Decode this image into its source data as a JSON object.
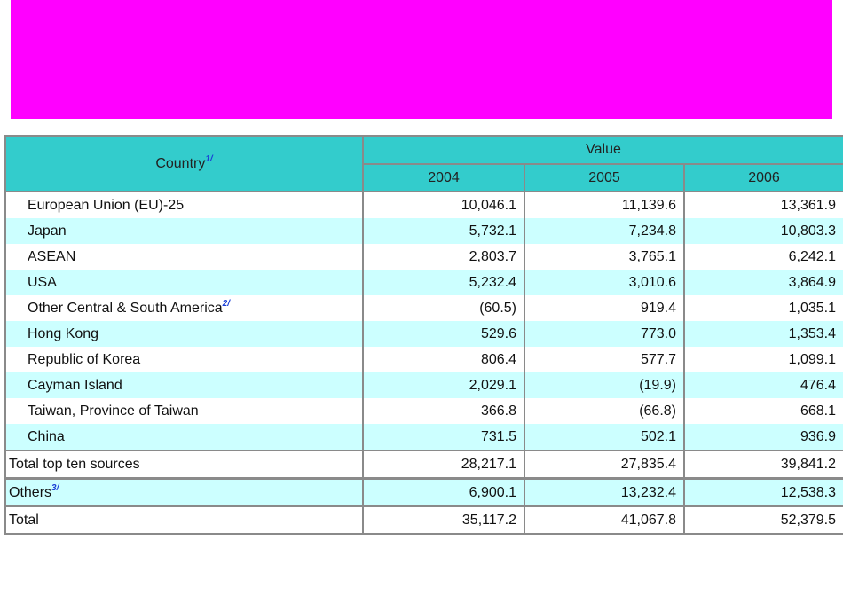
{
  "header": {
    "country": "Country",
    "country_note": "1/",
    "value": "Value",
    "years": [
      "2004",
      "2005",
      "2006"
    ]
  },
  "rows": [
    {
      "name": "European Union (EU)-25",
      "note": "",
      "v2004": "10,046.1",
      "v2005": "11,139.6",
      "v2006": "13,361.9"
    },
    {
      "name": "Japan",
      "note": "",
      "v2004": "5,732.1",
      "v2005": "7,234.8",
      "v2006": "10,803.3"
    },
    {
      "name": "ASEAN",
      "note": "",
      "v2004": "2,803.7",
      "v2005": "3,765.1",
      "v2006": "6,242.1"
    },
    {
      "name": "USA",
      "note": "",
      "v2004": "5,232.4",
      "v2005": "3,010.6",
      "v2006": "3,864.9"
    },
    {
      "name": "Other Central & South America",
      "note": "2/",
      "v2004": "(60.5)",
      "v2005": "919.4",
      "v2006": "1,035.1"
    },
    {
      "name": "Hong Kong",
      "note": "",
      "v2004": "529.6",
      "v2005": "773.0",
      "v2006": "1,353.4"
    },
    {
      "name": "Republic of Korea",
      "note": "",
      "v2004": "806.4",
      "v2005": "577.7",
      "v2006": "1,099.1"
    },
    {
      "name": "Cayman Island",
      "note": "",
      "v2004": "2,029.1",
      "v2005": "(19.9)",
      "v2006": "476.4"
    },
    {
      "name": "Taiwan, Province of Taiwan",
      "note": "",
      "v2004": "366.8",
      "v2005": "(66.8)",
      "v2006": "668.1"
    },
    {
      "name": "China",
      "note": "",
      "v2004": "731.5",
      "v2005": "502.1",
      "v2006": "936.9"
    }
  ],
  "totals": [
    {
      "name": "Total top ten sources",
      "note": "",
      "v2004": "28,217.1",
      "v2005": "27,835.4",
      "v2006": "39,841.2"
    },
    {
      "name": "Others",
      "note": "3/",
      "v2004": "6,900.1",
      "v2005": "13,232.4",
      "v2006": "12,538.3"
    },
    {
      "name": "Total",
      "note": "",
      "v2004": "35,117.2",
      "v2005": "41,067.8",
      "v2006": "52,379.5"
    }
  ],
  "colors": {
    "banner": "#ff00ff",
    "header_bg": "#33cccc",
    "row_alt": "#ccffff",
    "footnote": "#1a3fd6"
  }
}
